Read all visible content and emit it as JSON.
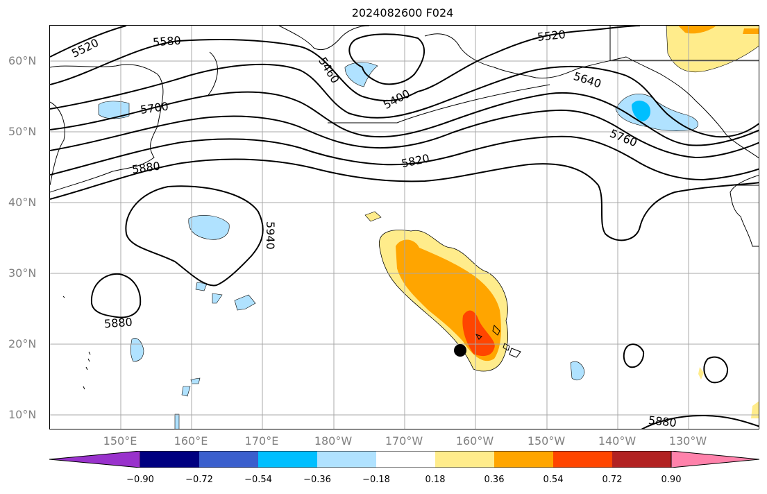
{
  "title": "2024082600 F024",
  "lat_labels": [
    "60°N",
    "50°N",
    "40°N",
    "30°N",
    "20°N",
    "10°N"
  ],
  "lon_labels": [
    "150°E",
    "160°E",
    "170°E",
    "180°W",
    "170°W",
    "160°W",
    "150°W",
    "140°W",
    "130°W"
  ],
  "contour_labels": [
    "5520",
    "5580",
    "5700",
    "5880",
    "5460",
    "5400",
    "5520",
    "5640",
    "5760",
    "5820",
    "5940",
    "5880",
    "5880"
  ],
  "colorbar": {
    "ticks": [
      "−0.90",
      "−0.72",
      "−0.54",
      "−0.36",
      "−0.18",
      "0.18",
      "0.36",
      "0.54",
      "0.72",
      "0.90"
    ],
    "colors": {
      "lt_neg090": "#9932cc",
      "neg090_072": "#000080",
      "neg072_054": "#3a5fcd",
      "neg054_036": "#00bfff",
      "neg036_018": "#b0e2ff",
      "neg018_018": "#ffffff",
      "p018_036": "#ffec8b",
      "p036_054": "#ffa500",
      "p054_072": "#ff4500",
      "p072_090": "#b22222",
      "gt_090": "#ff82ab"
    }
  },
  "marker": "storm-position-dot"
}
